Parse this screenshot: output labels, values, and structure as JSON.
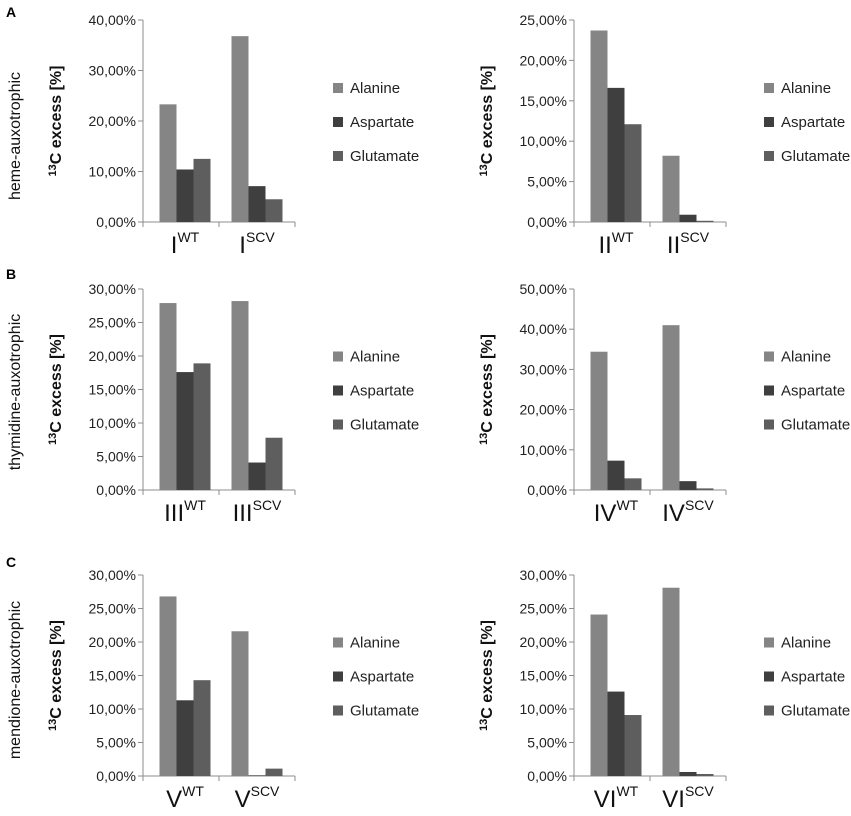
{
  "figure": {
    "panel_letters": [
      "A",
      "B",
      "C"
    ],
    "row_labels": [
      "heme-auxotrophic",
      "thymidine-auxotrophic",
      "mendione-auxotrophic"
    ],
    "ylabel_sup": "13",
    "ylabel_rest": "C excess [%]",
    "colors": {
      "Alanine": "#858585",
      "Aspartate": "#3f3f3f",
      "Glutamate": "#5e5e5e",
      "axis": "#8c8c8c"
    }
  },
  "chart_data": [
    {
      "type": "bar",
      "row": 0,
      "col": 0,
      "categories": [
        {
          "base": "I",
          "sup": "WT"
        },
        {
          "base": "I",
          "sup": "SCV"
        }
      ],
      "series": [
        {
          "name": "Alanine",
          "values": [
            23.3,
            36.8
          ]
        },
        {
          "name": "Aspartate",
          "values": [
            10.4,
            7.1
          ]
        },
        {
          "name": "Glutamate",
          "values": [
            12.5,
            4.5
          ]
        }
      ],
      "ylim": [
        0,
        40
      ],
      "ticks": [
        "0,00%",
        "10,00%",
        "20,00%",
        "30,00%",
        "40,00%"
      ],
      "ylabel": "13C excess [%]",
      "legend": [
        "Alanine",
        "Aspartate",
        "Glutamate"
      ]
    },
    {
      "type": "bar",
      "row": 0,
      "col": 1,
      "categories": [
        {
          "base": "II",
          "sup": "WT"
        },
        {
          "base": "II",
          "sup": "SCV"
        }
      ],
      "series": [
        {
          "name": "Alanine",
          "values": [
            23.7,
            8.2
          ]
        },
        {
          "name": "Aspartate",
          "values": [
            16.6,
            0.9
          ]
        },
        {
          "name": "Glutamate",
          "values": [
            12.1,
            0.15
          ]
        }
      ],
      "ylim": [
        0,
        25
      ],
      "ticks": [
        "0,00%",
        "5,00%",
        "10,00%",
        "15,00%",
        "20,00%",
        "25,00%"
      ],
      "ylabel": "13C excess [%]",
      "legend": [
        "Alanine",
        "Aspartate",
        "Glutamate"
      ]
    },
    {
      "type": "bar",
      "row": 1,
      "col": 0,
      "categories": [
        {
          "base": "III",
          "sup": "WT"
        },
        {
          "base": "III",
          "sup": "SCV"
        }
      ],
      "series": [
        {
          "name": "Alanine",
          "values": [
            27.9,
            28.2
          ]
        },
        {
          "name": "Aspartate",
          "values": [
            17.6,
            4.1
          ]
        },
        {
          "name": "Glutamate",
          "values": [
            18.9,
            7.8
          ]
        }
      ],
      "ylim": [
        0,
        30
      ],
      "ticks": [
        "0,00%",
        "5,00%",
        "10,00%",
        "15,00%",
        "20,00%",
        "25,00%",
        "30,00%"
      ],
      "ylabel": "13C excess [%]",
      "legend": [
        "Alanine",
        "Aspartate",
        "Glutamate"
      ]
    },
    {
      "type": "bar",
      "row": 1,
      "col": 1,
      "categories": [
        {
          "base": "IV",
          "sup": "WT"
        },
        {
          "base": "IV",
          "sup": "SCV"
        }
      ],
      "series": [
        {
          "name": "Alanine",
          "values": [
            34.4,
            41.0
          ]
        },
        {
          "name": "Aspartate",
          "values": [
            7.3,
            2.2
          ]
        },
        {
          "name": "Glutamate",
          "values": [
            2.9,
            0.4
          ]
        }
      ],
      "ylim": [
        0,
        50
      ],
      "ticks": [
        "0,00%",
        "10,00%",
        "20,00%",
        "30,00%",
        "40,00%",
        "50,00%"
      ],
      "ylabel": "13C excess [%]",
      "legend": [
        "Alanine",
        "Aspartate",
        "Glutamate"
      ]
    },
    {
      "type": "bar",
      "row": 2,
      "col": 0,
      "categories": [
        {
          "base": "V",
          "sup": "WT"
        },
        {
          "base": "V",
          "sup": "SCV"
        }
      ],
      "series": [
        {
          "name": "Alanine",
          "values": [
            26.8,
            21.6
          ]
        },
        {
          "name": "Aspartate",
          "values": [
            11.3,
            0.1
          ]
        },
        {
          "name": "Glutamate",
          "values": [
            14.3,
            1.1
          ]
        }
      ],
      "ylim": [
        0,
        30
      ],
      "ticks": [
        "0,00%",
        "5,00%",
        "10,00%",
        "15,00%",
        "20,00%",
        "25,00%",
        "30,00%"
      ],
      "ylabel": "13C excess [%]",
      "legend": [
        "Alanine",
        "Aspartate",
        "Glutamate"
      ]
    },
    {
      "type": "bar",
      "row": 2,
      "col": 1,
      "categories": [
        {
          "base": "VI",
          "sup": "WT"
        },
        {
          "base": "VI",
          "sup": "SCV"
        }
      ],
      "series": [
        {
          "name": "Alanine",
          "values": [
            24.1,
            28.1
          ]
        },
        {
          "name": "Aspartate",
          "values": [
            12.6,
            0.6
          ]
        },
        {
          "name": "Glutamate",
          "values": [
            9.1,
            0.3
          ]
        }
      ],
      "ylim": [
        0,
        30
      ],
      "ticks": [
        "0,00%",
        "5,00%",
        "10,00%",
        "15,00%",
        "20,00%",
        "25,00%",
        "30,00%"
      ],
      "ylabel": "13C excess [%]",
      "legend": [
        "Alanine",
        "Aspartate",
        "Glutamate"
      ]
    }
  ]
}
